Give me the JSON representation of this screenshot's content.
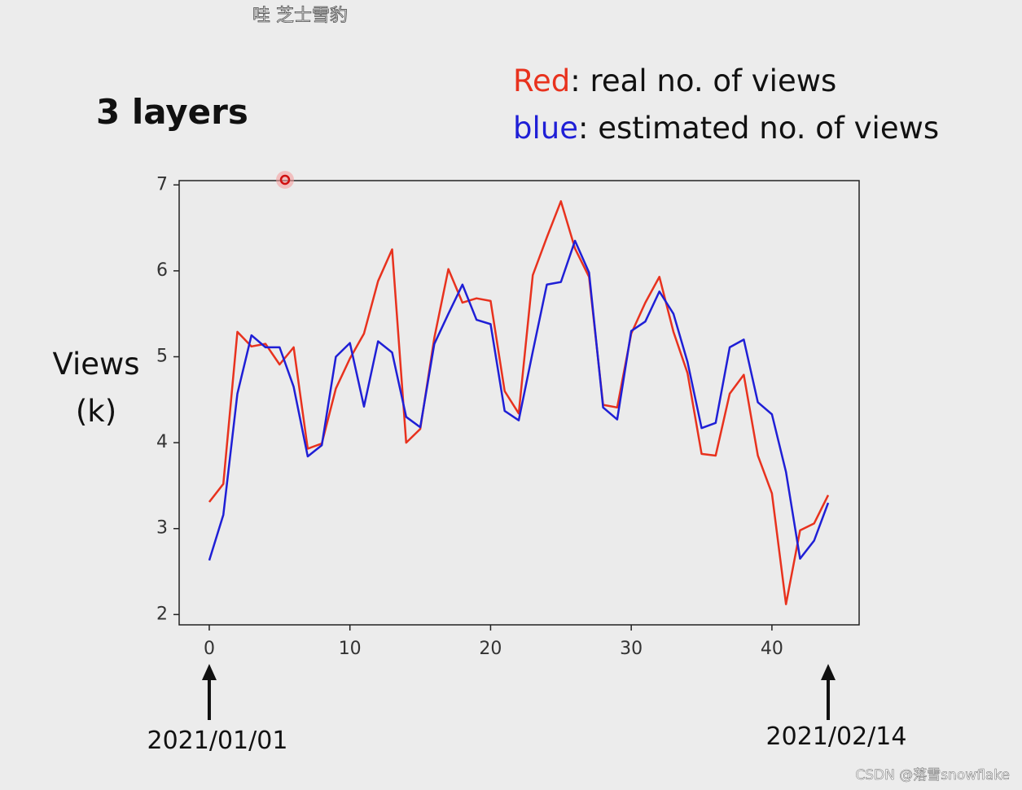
{
  "overlay_caption": "哇 芝士雪豹",
  "watermark": "CSDN @落雪snowflake",
  "chart_data": {
    "type": "line",
    "title": "3 layers",
    "ylabel_lines": [
      "Views",
      "(k)"
    ],
    "x": [
      0,
      1,
      2,
      3,
      4,
      5,
      6,
      7,
      8,
      9,
      10,
      11,
      12,
      13,
      14,
      15,
      16,
      17,
      18,
      19,
      20,
      21,
      22,
      23,
      24,
      25,
      26,
      27,
      28,
      29,
      30,
      31,
      32,
      33,
      34,
      35,
      36,
      37,
      38,
      39,
      40,
      41,
      42,
      43,
      44
    ],
    "series": [
      {
        "key": "Red",
        "label": ": real no. of views",
        "color": "#e8321e",
        "values": [
          3.31,
          3.52,
          5.29,
          5.12,
          5.15,
          4.91,
          5.11,
          3.93,
          3.99,
          4.63,
          4.98,
          5.27,
          5.88,
          6.25,
          4.0,
          4.16,
          5.22,
          6.02,
          5.63,
          5.68,
          5.65,
          4.6,
          4.34,
          5.95,
          6.39,
          6.81,
          6.26,
          5.93,
          4.44,
          4.41,
          5.27,
          5.63,
          5.93,
          5.29,
          4.81,
          3.87,
          3.85,
          4.57,
          4.79,
          3.85,
          3.41,
          2.12,
          2.98,
          3.06,
          3.39
        ]
      },
      {
        "key": "blue",
        "label": ":  estimated no. of views",
        "color": "#1f1fd6",
        "values": [
          2.63,
          3.16,
          4.57,
          5.25,
          5.11,
          5.11,
          4.65,
          3.84,
          3.97,
          5.0,
          5.16,
          4.42,
          5.18,
          5.05,
          4.3,
          4.18,
          5.15,
          5.5,
          5.84,
          5.43,
          5.38,
          4.37,
          4.26,
          5.06,
          5.84,
          5.87,
          6.35,
          5.98,
          4.41,
          4.27,
          5.3,
          5.41,
          5.76,
          5.5,
          4.94,
          4.17,
          4.23,
          5.11,
          5.2,
          4.47,
          4.33,
          3.66,
          2.65,
          2.86,
          3.3
        ]
      }
    ],
    "xlim": [
      -2.14,
      46.2
    ],
    "ylim": [
      1.88,
      7.05
    ],
    "xticks": [
      0,
      10,
      20,
      30,
      40
    ],
    "yticks": [
      2,
      3,
      4,
      5,
      6,
      7
    ],
    "annotations": [
      {
        "x": 0,
        "text": "2021/01/01"
      },
      {
        "x": 44,
        "text": "2021/02/14"
      }
    ]
  }
}
